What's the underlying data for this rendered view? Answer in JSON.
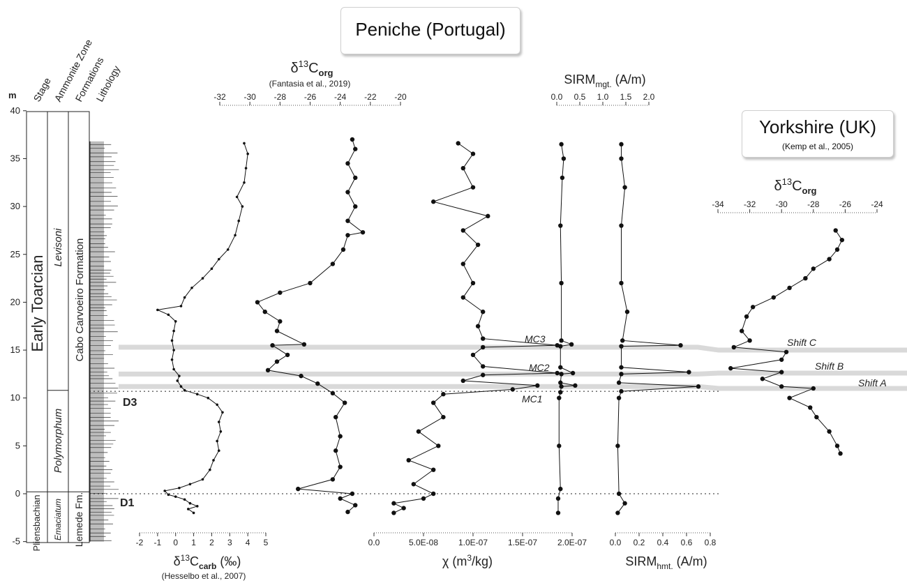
{
  "titles": {
    "peniche": "Peniche (Portugal)",
    "yorkshire": "Yorkshire (UK)",
    "yorkshire_citation": "(Kemp et al., 2005)"
  },
  "column_headers": {
    "m": "m",
    "stage": "Stage",
    "ammonite_zone": "Ammonite Zone",
    "formations": "Formations",
    "lithology": "Lithology"
  },
  "stratigraphy": {
    "stage_upper": "Early Toarcian",
    "stage_lower": "Pliensbachian",
    "zone_levisoni": "Levisoni",
    "zone_polymorphum": "Polymorphum",
    "zone_emaciatum": "Emaciatum",
    "formation_upper": "Cabo Carvoeiro Formation",
    "formation_lower": "Lemede Fm.",
    "d1_label": "D1",
    "d3_label": "D3",
    "d1_height_m": 0,
    "d3_height_m": 10.7,
    "stage_boundary_m": 0.2,
    "zone_boundary_m": 10.8
  },
  "axis_labels": {
    "carb_main": "δ13Ccarb (‰)",
    "carb_citation": "(Hesselbo et al., 2007)",
    "org_main": "δ13Corg",
    "org_citation": "(Fantasia et al., 2019)",
    "chi_main": "χ (m3/kg)",
    "sirm_mgt": "SIRMmgt. (A/m)",
    "sirm_hmt": "SIRMhmt. (A/m)",
    "yk_org_main": "δ13Corg"
  },
  "events": {
    "mc1": "MC1",
    "mc2": "MC2",
    "mc3": "MC3",
    "shift_a": "Shift A",
    "shift_b": "Shift B",
    "shift_c": "Shift C",
    "band_color": "#d9d9d9"
  },
  "chart_data": {
    "type": "line",
    "y_axis": {
      "label": "m",
      "range": [
        -5,
        40
      ],
      "ticks": [
        -5,
        0,
        5,
        10,
        15,
        20,
        25,
        30,
        35,
        40
      ]
    },
    "series": [
      {
        "name": "δ13Ccarb",
        "x_range": [
          -2,
          5
        ],
        "x_ticks": [
          -2,
          -1,
          0,
          1,
          2,
          3,
          4,
          5
        ],
        "points": [
          [
            1,
            -2
          ],
          [
            0.7,
            -1.6
          ],
          [
            1.2,
            -1.3
          ],
          [
            0.8,
            -1
          ],
          [
            0.5,
            -0.6
          ],
          [
            0,
            -0.3
          ],
          [
            -0.4,
            -0.1
          ],
          [
            -0.6,
            0.3
          ],
          [
            0.2,
            0.6
          ],
          [
            0.8,
            1
          ],
          [
            1.5,
            1.5
          ],
          [
            1.9,
            2.5
          ],
          [
            2.1,
            3.5
          ],
          [
            2.4,
            4.5
          ],
          [
            2.3,
            5.5
          ],
          [
            2.5,
            6.5
          ],
          [
            2.4,
            7.5
          ],
          [
            2.6,
            8.5
          ],
          [
            2.3,
            9.3
          ],
          [
            1.8,
            10
          ],
          [
            1.2,
            10.4
          ],
          [
            0.5,
            10.8
          ],
          [
            0.3,
            11.2
          ],
          [
            0.1,
            11.8
          ],
          [
            0.2,
            12.3
          ],
          [
            -0.1,
            13
          ],
          [
            -0.2,
            14
          ],
          [
            -0.1,
            15
          ],
          [
            -0.2,
            16
          ],
          [
            -0.1,
            17
          ],
          [
            0,
            18
          ],
          [
            -0.4,
            18.7
          ],
          [
            -1,
            19.2
          ],
          [
            0.3,
            19.6
          ],
          [
            0.5,
            20.5
          ],
          [
            0.9,
            21.5
          ],
          [
            1.5,
            22.5
          ],
          [
            2,
            23.5
          ],
          [
            2.4,
            24.5
          ],
          [
            2.9,
            25.5
          ],
          [
            3.3,
            27
          ],
          [
            3.5,
            28.5
          ],
          [
            3.7,
            30
          ],
          [
            3.4,
            31
          ],
          [
            3.8,
            32.5
          ],
          [
            3.9,
            34
          ],
          [
            4.0,
            35.5
          ],
          [
            3.8,
            36.6
          ]
        ]
      },
      {
        "name": "δ13Corg",
        "x_range": [
          -32,
          -20
        ],
        "x_ticks": [
          -32,
          -30,
          -28,
          -26,
          -24,
          -22,
          -20
        ],
        "points": [
          [
            -23.5,
            -1.9
          ],
          [
            -23.0,
            -1.2
          ],
          [
            -24.0,
            -0.5
          ],
          [
            -23.2,
            0
          ],
          [
            -26.8,
            0.5
          ],
          [
            -24.5,
            1.5
          ],
          [
            -24.0,
            2.8
          ],
          [
            -24.3,
            4.5
          ],
          [
            -24.0,
            6
          ],
          [
            -24.3,
            8
          ],
          [
            -23.7,
            9.5
          ],
          [
            -24.5,
            10.5
          ],
          [
            -25.5,
            11.5
          ],
          [
            -26.6,
            12.3
          ],
          [
            -28.8,
            12.9
          ],
          [
            -28.2,
            13.8
          ],
          [
            -27.5,
            14.5
          ],
          [
            -28.5,
            15.5
          ],
          [
            -26.4,
            15.6
          ],
          [
            -28.2,
            17
          ],
          [
            -28.0,
            18
          ],
          [
            -29.0,
            19
          ],
          [
            -29.5,
            20
          ],
          [
            -28.0,
            21
          ],
          [
            -26.0,
            22
          ],
          [
            -24.5,
            24
          ],
          [
            -23.8,
            25.5
          ],
          [
            -23.5,
            27
          ],
          [
            -22.5,
            27.3
          ],
          [
            -23.5,
            28.5
          ],
          [
            -23.0,
            30
          ],
          [
            -23.5,
            31.5
          ],
          [
            -23.0,
            33
          ],
          [
            -23.5,
            34.5
          ],
          [
            -23.0,
            36
          ],
          [
            -23.2,
            37
          ]
        ]
      },
      {
        "name": "χ",
        "x_range": [
          0,
          2e-07
        ],
        "x_ticks": [
          0,
          5e-08,
          1e-07,
          1.5e-07,
          2e-07
        ],
        "points": [
          [
            2e-08,
            -2.0
          ],
          [
            3e-08,
            -1.5
          ],
          [
            2e-08,
            -1.0
          ],
          [
            5e-08,
            -0.5
          ],
          [
            6e-08,
            0
          ],
          [
            4e-08,
            1.0
          ],
          [
            6e-08,
            2.5
          ],
          [
            3.5e-08,
            3.5
          ],
          [
            6.5e-08,
            5.0
          ],
          [
            4.5e-08,
            6.5
          ],
          [
            7e-08,
            8.0
          ],
          [
            6e-08,
            9.5
          ],
          [
            7e-08,
            10.4
          ],
          [
            1.4e-07,
            10.9
          ],
          [
            1.65e-07,
            11.3
          ],
          [
            9e-08,
            11.8
          ],
          [
            1.1e-07,
            12.4
          ],
          [
            1.85e-07,
            12.6
          ],
          [
            1.1e-07,
            13.3
          ],
          [
            1e-07,
            14.5
          ],
          [
            1.1e-07,
            15.3
          ],
          [
            1.85e-07,
            15.5
          ],
          [
            1.1e-07,
            16.2
          ],
          [
            1.05e-07,
            17.5
          ],
          [
            1.1e-07,
            19
          ],
          [
            9e-08,
            20.5
          ],
          [
            1e-07,
            22
          ],
          [
            9e-08,
            24
          ],
          [
            1.05e-07,
            26
          ],
          [
            9e-08,
            27.5
          ],
          [
            1.15e-07,
            29
          ],
          [
            6e-08,
            30.5
          ],
          [
            1e-07,
            32
          ],
          [
            9e-08,
            34
          ],
          [
            1e-07,
            35.5
          ],
          [
            8.5e-08,
            36.6
          ]
        ]
      },
      {
        "name": "SIRMmgt.",
        "x_range": [
          0,
          2.0
        ],
        "x_ticks": [
          0,
          0.5,
          1.0,
          1.5,
          2.0
        ],
        "points": [
          [
            0.03,
            -2
          ],
          [
            0.03,
            -0.5
          ],
          [
            0.08,
            0.5
          ],
          [
            0.05,
            5
          ],
          [
            0.05,
            10
          ],
          [
            0.08,
            10.6
          ],
          [
            0.1,
            11.2
          ],
          [
            0.4,
            11.3
          ],
          [
            0.08,
            11.6
          ],
          [
            0.1,
            12.5
          ],
          [
            0.35,
            12.6
          ],
          [
            0.08,
            13.2
          ],
          [
            0.08,
            15.4
          ],
          [
            0.32,
            15.6
          ],
          [
            0.1,
            16
          ],
          [
            0.1,
            22
          ],
          [
            0.08,
            28
          ],
          [
            0.12,
            33
          ],
          [
            0.15,
            35
          ],
          [
            0.1,
            36.5
          ]
        ]
      },
      {
        "name": "SIRMhmt.",
        "x_range": [
          0,
          0.8
        ],
        "x_ticks": [
          0,
          0.2,
          0.4,
          0.6,
          0.8
        ],
        "points": [
          [
            0.02,
            -2
          ],
          [
            0.08,
            -1
          ],
          [
            0.03,
            0
          ],
          [
            0.02,
            5
          ],
          [
            0.03,
            10
          ],
          [
            0.05,
            10.7
          ],
          [
            0.7,
            11.2
          ],
          [
            0.03,
            11.6
          ],
          [
            0.05,
            12.5
          ],
          [
            0.62,
            12.7
          ],
          [
            0.05,
            13.2
          ],
          [
            0.05,
            15.4
          ],
          [
            0.55,
            15.5
          ],
          [
            0.06,
            16
          ],
          [
            0.1,
            19
          ],
          [
            0.05,
            22
          ],
          [
            0.05,
            28
          ],
          [
            0.08,
            32
          ],
          [
            0.05,
            35
          ],
          [
            0.05,
            36.5
          ]
        ]
      },
      {
        "name": "Yorkshire δ13Corg",
        "x_range": [
          -34,
          -24
        ],
        "x_ticks": [
          -34,
          -32,
          -30,
          -28,
          -26,
          -24
        ],
        "points": [
          [
            -26.3,
            4.2
          ],
          [
            -26.5,
            5
          ],
          [
            -27.0,
            6.5
          ],
          [
            -27.8,
            8
          ],
          [
            -28.2,
            9
          ],
          [
            -29.5,
            10
          ],
          [
            -28.0,
            11
          ],
          [
            -30.0,
            11.2
          ],
          [
            -31.2,
            12
          ],
          [
            -30.0,
            12.7
          ],
          [
            -33.2,
            13.1
          ],
          [
            -30.0,
            14.0
          ],
          [
            -29.7,
            14.8
          ],
          [
            -33.0,
            15.3
          ],
          [
            -32.0,
            16
          ],
          [
            -32.5,
            17
          ],
          [
            -32.2,
            18.5
          ],
          [
            -31.8,
            19.5
          ],
          [
            -30.5,
            20.5
          ],
          [
            -29.5,
            21.5
          ],
          [
            -28.5,
            22.5
          ],
          [
            -28.0,
            23.5
          ],
          [
            -27.0,
            24.5
          ],
          [
            -26.5,
            25.5
          ],
          [
            -26.2,
            26.5
          ],
          [
            -26.6,
            27.5
          ]
        ]
      }
    ]
  }
}
